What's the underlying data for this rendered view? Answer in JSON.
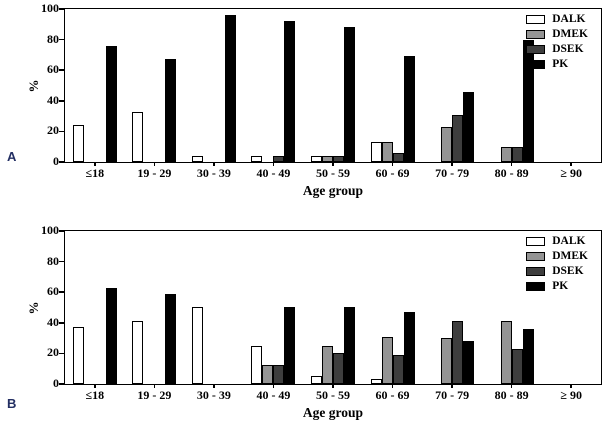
{
  "figure_type": "two-panel grouped bar chart",
  "colors": {
    "DALK": "#ffffff",
    "DMEK": "#949494",
    "DSEK": "#3e3e3e",
    "PK": "#000000",
    "bar_outline": "#000000",
    "panel_letter": "#232f63",
    "background": "#ffffff"
  },
  "legend": {
    "entries": [
      "DALK",
      "DMEK",
      "DSEK",
      "PK"
    ],
    "position": "top-right"
  },
  "chart_data": [
    {
      "type": "bar",
      "panel_label": "A",
      "title": "",
      "xlabel": "Age group",
      "ylabel": "%",
      "ylim": [
        0,
        100
      ],
      "yticks": [
        0,
        20,
        40,
        60,
        80,
        100
      ],
      "grid": false,
      "legend_position": "top-right",
      "categories": [
        "≤18",
        "19 - 29",
        "30 - 39",
        "40 - 49",
        "50 - 59",
        "60 - 69",
        "70 - 79",
        "80 - 89",
        "≥ 90"
      ],
      "series": [
        {
          "name": "DALK",
          "values": [
            24,
            33,
            4,
            4,
            4,
            13,
            0,
            0,
            0
          ]
        },
        {
          "name": "DMEK",
          "values": [
            0,
            0,
            0,
            0,
            4,
            13,
            23,
            10,
            0
          ]
        },
        {
          "name": "DSEK",
          "values": [
            0,
            0,
            0,
            4,
            4,
            6,
            31,
            10,
            0
          ]
        },
        {
          "name": "PK",
          "values": [
            76,
            67,
            96,
            92,
            88,
            69,
            46,
            80,
            0
          ]
        }
      ]
    },
    {
      "type": "bar",
      "panel_label": "B",
      "title": "",
      "xlabel": "Age group",
      "ylabel": "%",
      "ylim": [
        0,
        100
      ],
      "yticks": [
        0,
        20,
        40,
        60,
        80,
        100
      ],
      "grid": false,
      "legend_position": "top-right",
      "categories": [
        "≤18",
        "19 - 29",
        "30 - 39",
        "40 - 49",
        "50 - 59",
        "60 - 69",
        "70 - 79",
        "80 - 89",
        "≥ 90"
      ],
      "series": [
        {
          "name": "DALK",
          "values": [
            37,
            41,
            50,
            25,
            5,
            3,
            0,
            0,
            0
          ]
        },
        {
          "name": "DMEK",
          "values": [
            0,
            0,
            0,
            12.5,
            25,
            31,
            30,
            41,
            0
          ]
        },
        {
          "name": "DSEK",
          "values": [
            0,
            0,
            0,
            12.5,
            20,
            19,
            41,
            23,
            0
          ]
        },
        {
          "name": "PK",
          "values": [
            63,
            59,
            0,
            50,
            50,
            47,
            28,
            36,
            0
          ]
        }
      ]
    }
  ]
}
